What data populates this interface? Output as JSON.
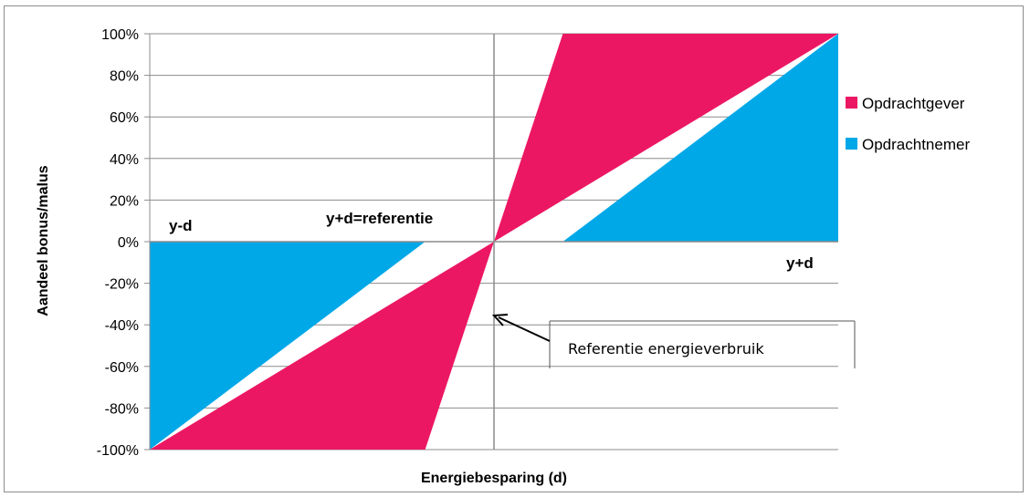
{
  "chart_data": {
    "type": "area",
    "xlabel": "Energiebesparing (d)",
    "ylabel": "Aandeel bonus/malus",
    "ylim": [
      -100,
      100
    ],
    "yticks": [
      "100%",
      "80%",
      "60%",
      "40%",
      "20%",
      "0%",
      "-20%",
      "-40%",
      "-60%",
      "-80%",
      "-100%"
    ],
    "xlim": [
      -1,
      1
    ],
    "grid": true,
    "legend_position": "right",
    "series": [
      {
        "name": "Opdrachtgever",
        "color": "#ec1763",
        "regions": [
          [
            [
              0,
              0
            ],
            [
              0.2,
              100
            ],
            [
              1,
              100
            ]
          ],
          [
            [
              0,
              0
            ],
            [
              -1,
              -100
            ],
            [
              -0.2,
              -100
            ]
          ]
        ]
      },
      {
        "name": "Opdrachtnemer",
        "color": "#00a8e8",
        "regions": [
          [
            [
              0.2,
              0
            ],
            [
              1,
              100
            ],
            [
              1,
              0
            ]
          ],
          [
            [
              -1,
              0
            ],
            [
              -1,
              -100
            ],
            [
              -0.2,
              0
            ]
          ]
        ]
      }
    ],
    "annotations": {
      "left_label": "y-d",
      "center_label": "y+d=referentie",
      "right_label": "y+d",
      "callout": "Referentie energieverbruik"
    }
  }
}
